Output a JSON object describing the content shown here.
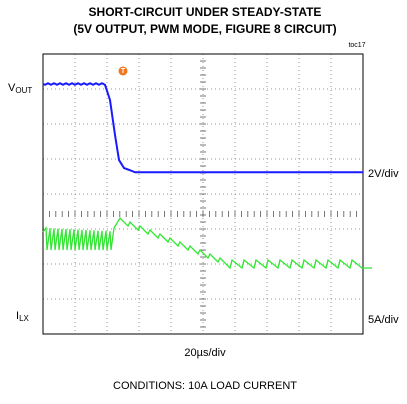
{
  "title": [
    "SHORT-CIRCUIT UNDER STEADY-STATE",
    "(5V OUTPUT, PWM MODE, FIGURE 8 CIRCUIT)"
  ],
  "figure_id": "toc17",
  "channels": [
    {
      "label": "V",
      "label_sub": "OUT",
      "scale": "2V/div"
    },
    {
      "label": "I",
      "label_sub": "LX",
      "scale": "5A/div"
    }
  ],
  "timebase": "20µs/div",
  "trigger_marker": "T",
  "note": "CONDITIONS: 10A LOAD CURRENT"
}
